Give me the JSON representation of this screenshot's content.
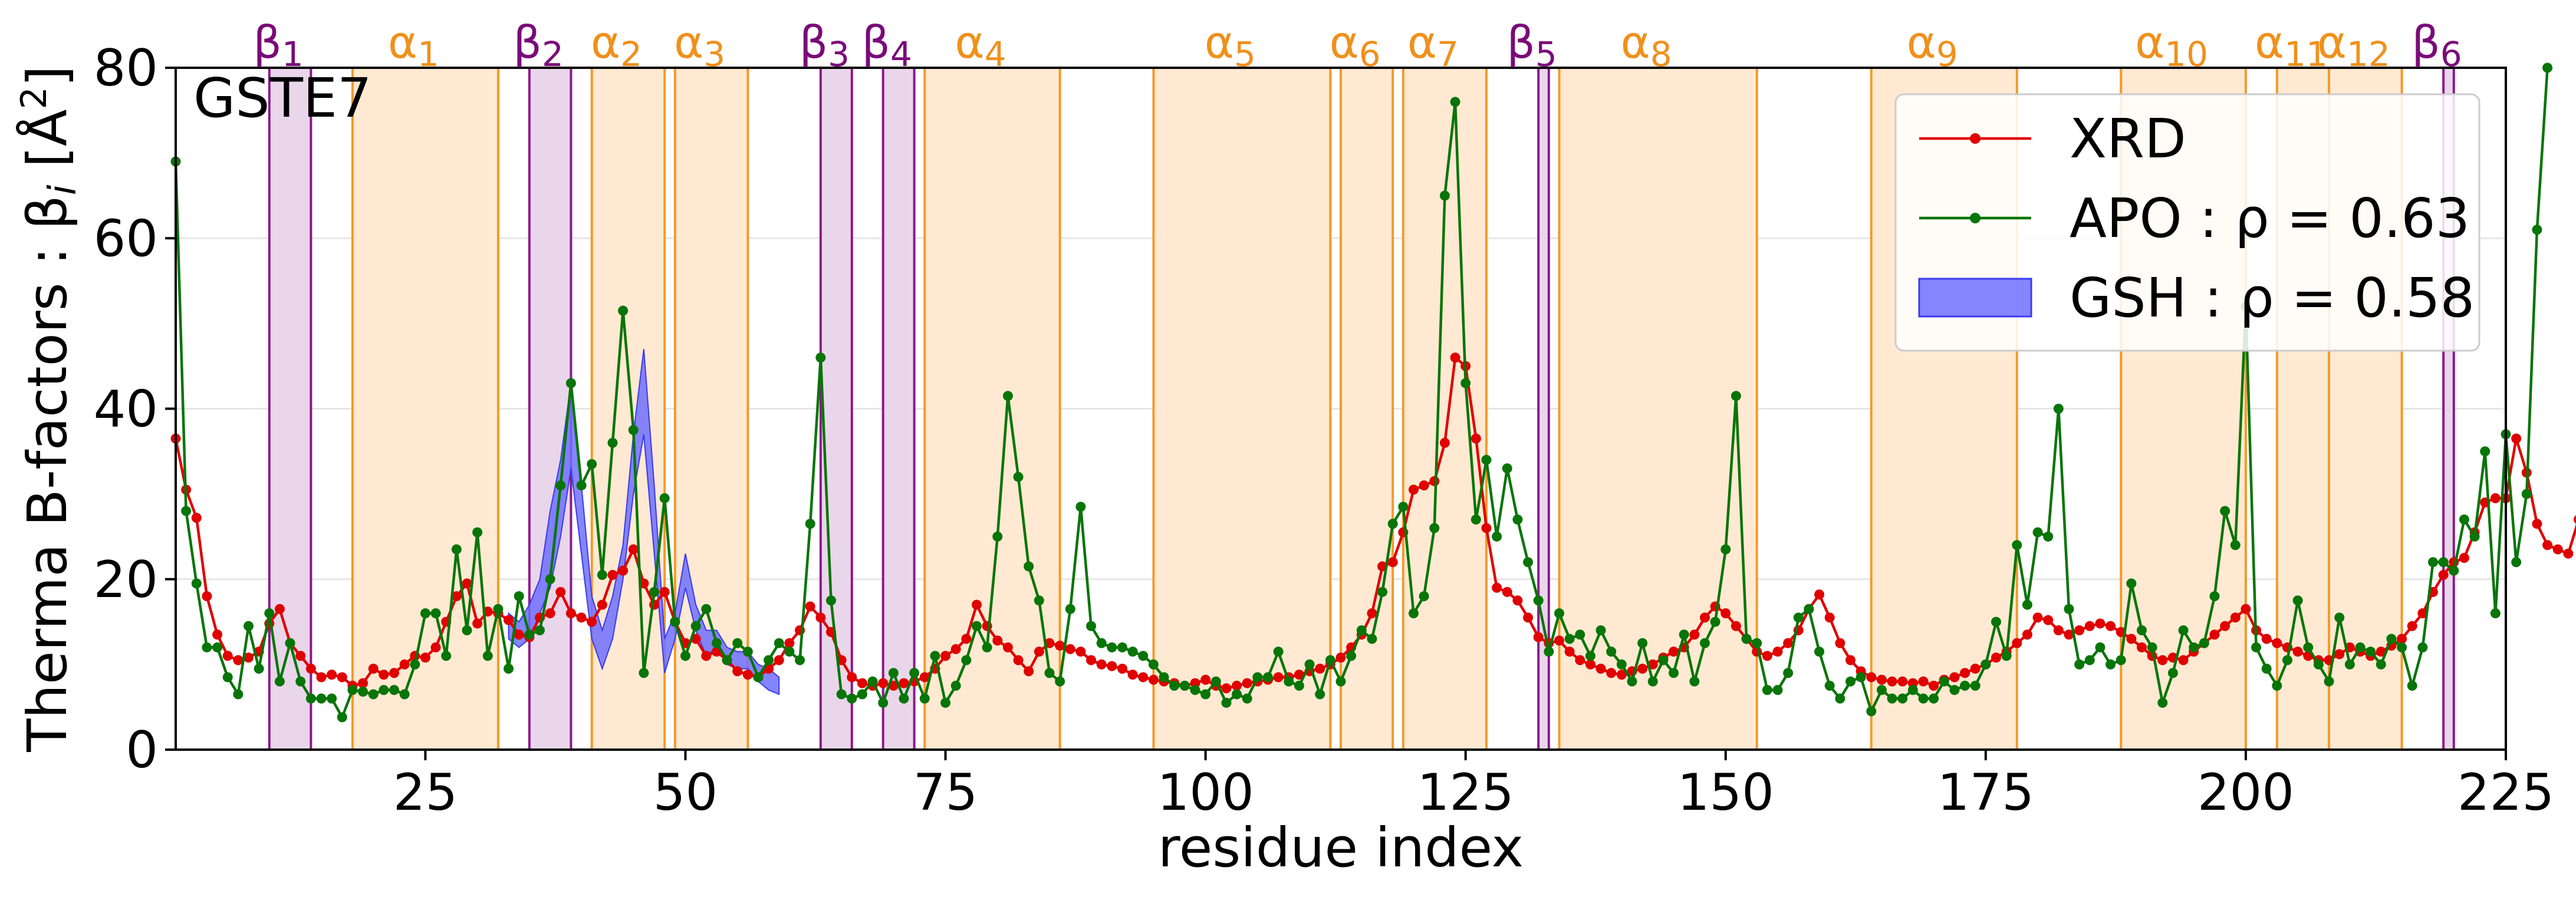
{
  "chart_data": {
    "type": "line",
    "panel_label": "GSTE7",
    "xlabel": "residue index",
    "ylabel": "Therma B-factors : β_i [Å²]",
    "xlim": [
      1,
      225
    ],
    "ylim": [
      0,
      80
    ],
    "xticks": [
      25,
      50,
      75,
      100,
      125,
      150,
      175,
      200,
      225
    ],
    "yticks": [
      0,
      20,
      40,
      60,
      80
    ],
    "grid": "horizontal",
    "legend_position": "top-right",
    "colors": {
      "xrd": "#e00000",
      "apo": "#087508",
      "gsh_fill": "#7070ff",
      "gsh_edge": "#3a3af0",
      "helix_fill": "#ffe9d2",
      "helix_edge": "#f39a2a",
      "helix_text": "#f0901c",
      "strand_fill": "#ead6ea",
      "strand_edge": "#8a1a8a",
      "strand_text": "#7a0a7a"
    },
    "legend": [
      {
        "key": "xrd",
        "label": "XRD"
      },
      {
        "key": "apo",
        "label": "APO : ρ = 0.63"
      },
      {
        "key": "gsh",
        "label": "GSH : ρ = 0.58"
      }
    ],
    "regions": [
      {
        "type": "strand",
        "label": "β",
        "sub": "1",
        "start": 10,
        "end": 14
      },
      {
        "type": "helix",
        "label": "α",
        "sub": "1",
        "start": 18,
        "end": 32
      },
      {
        "type": "strand",
        "label": "β",
        "sub": "2",
        "start": 35,
        "end": 39
      },
      {
        "type": "helix",
        "label": "α",
        "sub": "2",
        "start": 41,
        "end": 48
      },
      {
        "type": "helix",
        "label": "α",
        "sub": "3",
        "start": 49,
        "end": 56
      },
      {
        "type": "strand",
        "label": "β",
        "sub": "3",
        "start": 63,
        "end": 66
      },
      {
        "type": "strand",
        "label": "β",
        "sub": "4",
        "start": 69,
        "end": 72
      },
      {
        "type": "helix",
        "label": "α",
        "sub": "4",
        "start": 73,
        "end": 86
      },
      {
        "type": "helix",
        "label": "α",
        "sub": "5",
        "start": 95,
        "end": 112
      },
      {
        "type": "helix",
        "label": "α",
        "sub": "6",
        "start": 113,
        "end": 118
      },
      {
        "type": "helix",
        "label": "α",
        "sub": "7",
        "start": 119,
        "end": 127
      },
      {
        "type": "strand",
        "label": "β",
        "sub": "5",
        "start": 132,
        "end": 133
      },
      {
        "type": "helix",
        "label": "α",
        "sub": "8",
        "start": 134,
        "end": 153
      },
      {
        "type": "helix",
        "label": "α",
        "sub": "9",
        "start": 164,
        "end": 178
      },
      {
        "type": "helix",
        "label": "α",
        "sub": "10",
        "start": 188,
        "end": 200
      },
      {
        "type": "helix",
        "label": "α",
        "sub": "11",
        "start": 203,
        "end": 208
      },
      {
        "type": "helix",
        "label": "α",
        "sub": "12",
        "start": 208,
        "end": 215
      },
      {
        "type": "strand",
        "label": "β",
        "sub": "6",
        "start": 219,
        "end": 220
      }
    ],
    "series": [
      {
        "key": "xrd",
        "name": "XRD",
        "x_start": 1,
        "values": [
          36.5,
          30.5,
          27.2,
          18,
          13.5,
          11,
          10.5,
          10.8,
          11.5,
          14.8,
          16.5,
          12.5,
          11,
          9.5,
          8.5,
          8.8,
          8.5,
          7.5,
          7.8,
          9.5,
          8.8,
          9,
          10,
          11,
          10.8,
          12,
          15,
          18,
          19.5,
          14.8,
          16.2,
          16,
          15.2,
          13.5,
          13.2,
          15.5,
          16,
          18.5,
          16,
          15.5,
          15,
          17,
          20.5,
          21,
          23.5,
          19.5,
          17,
          18.5,
          15,
          12.5,
          13,
          11,
          11.5,
          10.5,
          9.2,
          8.8,
          8.5,
          9.5,
          10.5,
          12.5,
          14,
          16.8,
          15.5,
          13.8,
          10.5,
          8.5,
          7.8,
          7.5,
          7.8,
          7.5,
          7.8,
          8,
          8.5,
          9.5,
          11,
          11.8,
          13,
          17,
          14.5,
          12.8,
          12,
          10.5,
          9.2,
          11.5,
          12.5,
          12.2,
          11.8,
          11.5,
          10.5,
          10,
          9.8,
          9.5,
          8.8,
          8.5,
          8.2,
          8,
          7.8,
          7.5,
          7.8,
          8.2,
          7.5,
          7.2,
          7.5,
          7.8,
          8,
          8.2,
          8.5,
          8.5,
          8.8,
          9.2,
          9.5,
          10,
          10.8,
          12,
          13.5,
          16,
          21.5,
          22,
          25.5,
          30.5,
          31,
          31.5,
          36,
          46,
          45,
          36.5,
          26,
          19,
          18.5,
          17.5,
          15.5,
          13.2,
          12.5,
          12.8,
          11.5,
          10.5,
          10,
          9.5,
          9,
          8.8,
          9.2,
          9.5,
          10,
          10.8,
          11.5,
          12,
          13.5,
          15.5,
          16.8,
          16,
          14.5,
          13,
          11.5,
          11,
          11.5,
          12.5,
          14,
          16.5,
          18.2,
          15.5,
          12.5,
          10.5,
          9.2,
          8.5,
          8.2,
          8,
          8,
          7.8,
          8,
          7.5,
          8.2,
          8.5,
          9,
          9.5,
          10,
          10.8,
          11.5,
          12.5,
          13.5,
          15.5,
          15.2,
          14,
          13.5,
          14,
          14.5,
          14.8,
          14.5,
          13.8,
          13,
          12,
          11,
          10.5,
          10.8,
          10.5,
          11.5,
          12.5,
          13.5,
          14.5,
          15.5,
          16.5,
          14,
          13,
          12.5,
          12,
          11.5,
          11,
          10.5,
          10.5,
          11.2,
          12,
          11.5,
          11,
          11.5,
          12.2,
          13,
          14.5,
          16,
          18.5,
          20.5,
          22,
          22.5,
          25.5,
          29,
          29.5,
          29.5,
          36.5,
          32.5,
          26.5,
          24,
          23.5,
          23,
          27,
          31.5
        ]
      },
      {
        "key": "apo",
        "name": "APO",
        "x_start": 1,
        "values": [
          69,
          28,
          19.5,
          12,
          12,
          8.5,
          6.5,
          14.5,
          9.5,
          16,
          8,
          12.5,
          8,
          6,
          6,
          6,
          3.8,
          7,
          6.8,
          6.5,
          7,
          7,
          6.5,
          10,
          16,
          16,
          11,
          23.5,
          14,
          25.5,
          11,
          16.5,
          9.5,
          18,
          13.5,
          14,
          20,
          31,
          43,
          31,
          33.5,
          20.5,
          36,
          51.5,
          37.5,
          9,
          18.5,
          29.5,
          15,
          11,
          14.5,
          16.5,
          12.5,
          10.5,
          12.5,
          11.5,
          8.5,
          10.5,
          12.5,
          11.5,
          10.5,
          26.5,
          46,
          17.5,
          6.5,
          6,
          6.5,
          8,
          5.5,
          9,
          6,
          9,
          6,
          11,
          5.5,
          7.5,
          10.5,
          14.5,
          12,
          25,
          41.5,
          32,
          21.5,
          17.5,
          9,
          8,
          16.5,
          28.5,
          14.5,
          12.5,
          12,
          12,
          11.5,
          11,
          10,
          8.5,
          7.5,
          7.5,
          7,
          6.5,
          8,
          5.5,
          6.5,
          6,
          8.5,
          8.5,
          11.5,
          8,
          7.5,
          10,
          6.5,
          10.5,
          8,
          11,
          14,
          13,
          18.5,
          26.5,
          28.5,
          16,
          18,
          26,
          65,
          76,
          43,
          27,
          34,
          25,
          33,
          27,
          22,
          17.5,
          11.5,
          16,
          13,
          13.5,
          11,
          14,
          11.5,
          10,
          8,
          12.5,
          8,
          10.5,
          9,
          13.5,
          8,
          12.5,
          15,
          23.5,
          41.5,
          13,
          12.5,
          7,
          7,
          9,
          15.5,
          16.5,
          11.5,
          7.5,
          6,
          8,
          8.5,
          4.5,
          7,
          6,
          6,
          7,
          6,
          6,
          8,
          7,
          7.5,
          7.5,
          10,
          15,
          11,
          24,
          17,
          25.5,
          25,
          40,
          16.5,
          10,
          10.5,
          12,
          10,
          10.5,
          19.5,
          14,
          12,
          5.5,
          9,
          14,
          12,
          12.5,
          18,
          28,
          24,
          52,
          12,
          9.5,
          7.5,
          10.5,
          17.5,
          12,
          10,
          8,
          15.5,
          10,
          12,
          11.5,
          10,
          13,
          12,
          7.5,
          12,
          22,
          22,
          21,
          27,
          25,
          35,
          16,
          37,
          22,
          30,
          61,
          80
        ]
      },
      {
        "key": "gsh",
        "name": "GSH",
        "x_start": 33,
        "lower": [
          13,
          12,
          13,
          16,
          19,
          25,
          33,
          23,
          13,
          9.5,
          13,
          20,
          30,
          37,
          23,
          9,
          13,
          19,
          14,
          11,
          12,
          10,
          9.5,
          9.5,
          8,
          7,
          6.5
        ],
        "upper": [
          16,
          15,
          17,
          20,
          28,
          34,
          43,
          31,
          18,
          14,
          18,
          24,
          37,
          47,
          31,
          13,
          16,
          23,
          17,
          14,
          14,
          12,
          11.5,
          11.5,
          10,
          9.5,
          8.5
        ]
      }
    ]
  }
}
